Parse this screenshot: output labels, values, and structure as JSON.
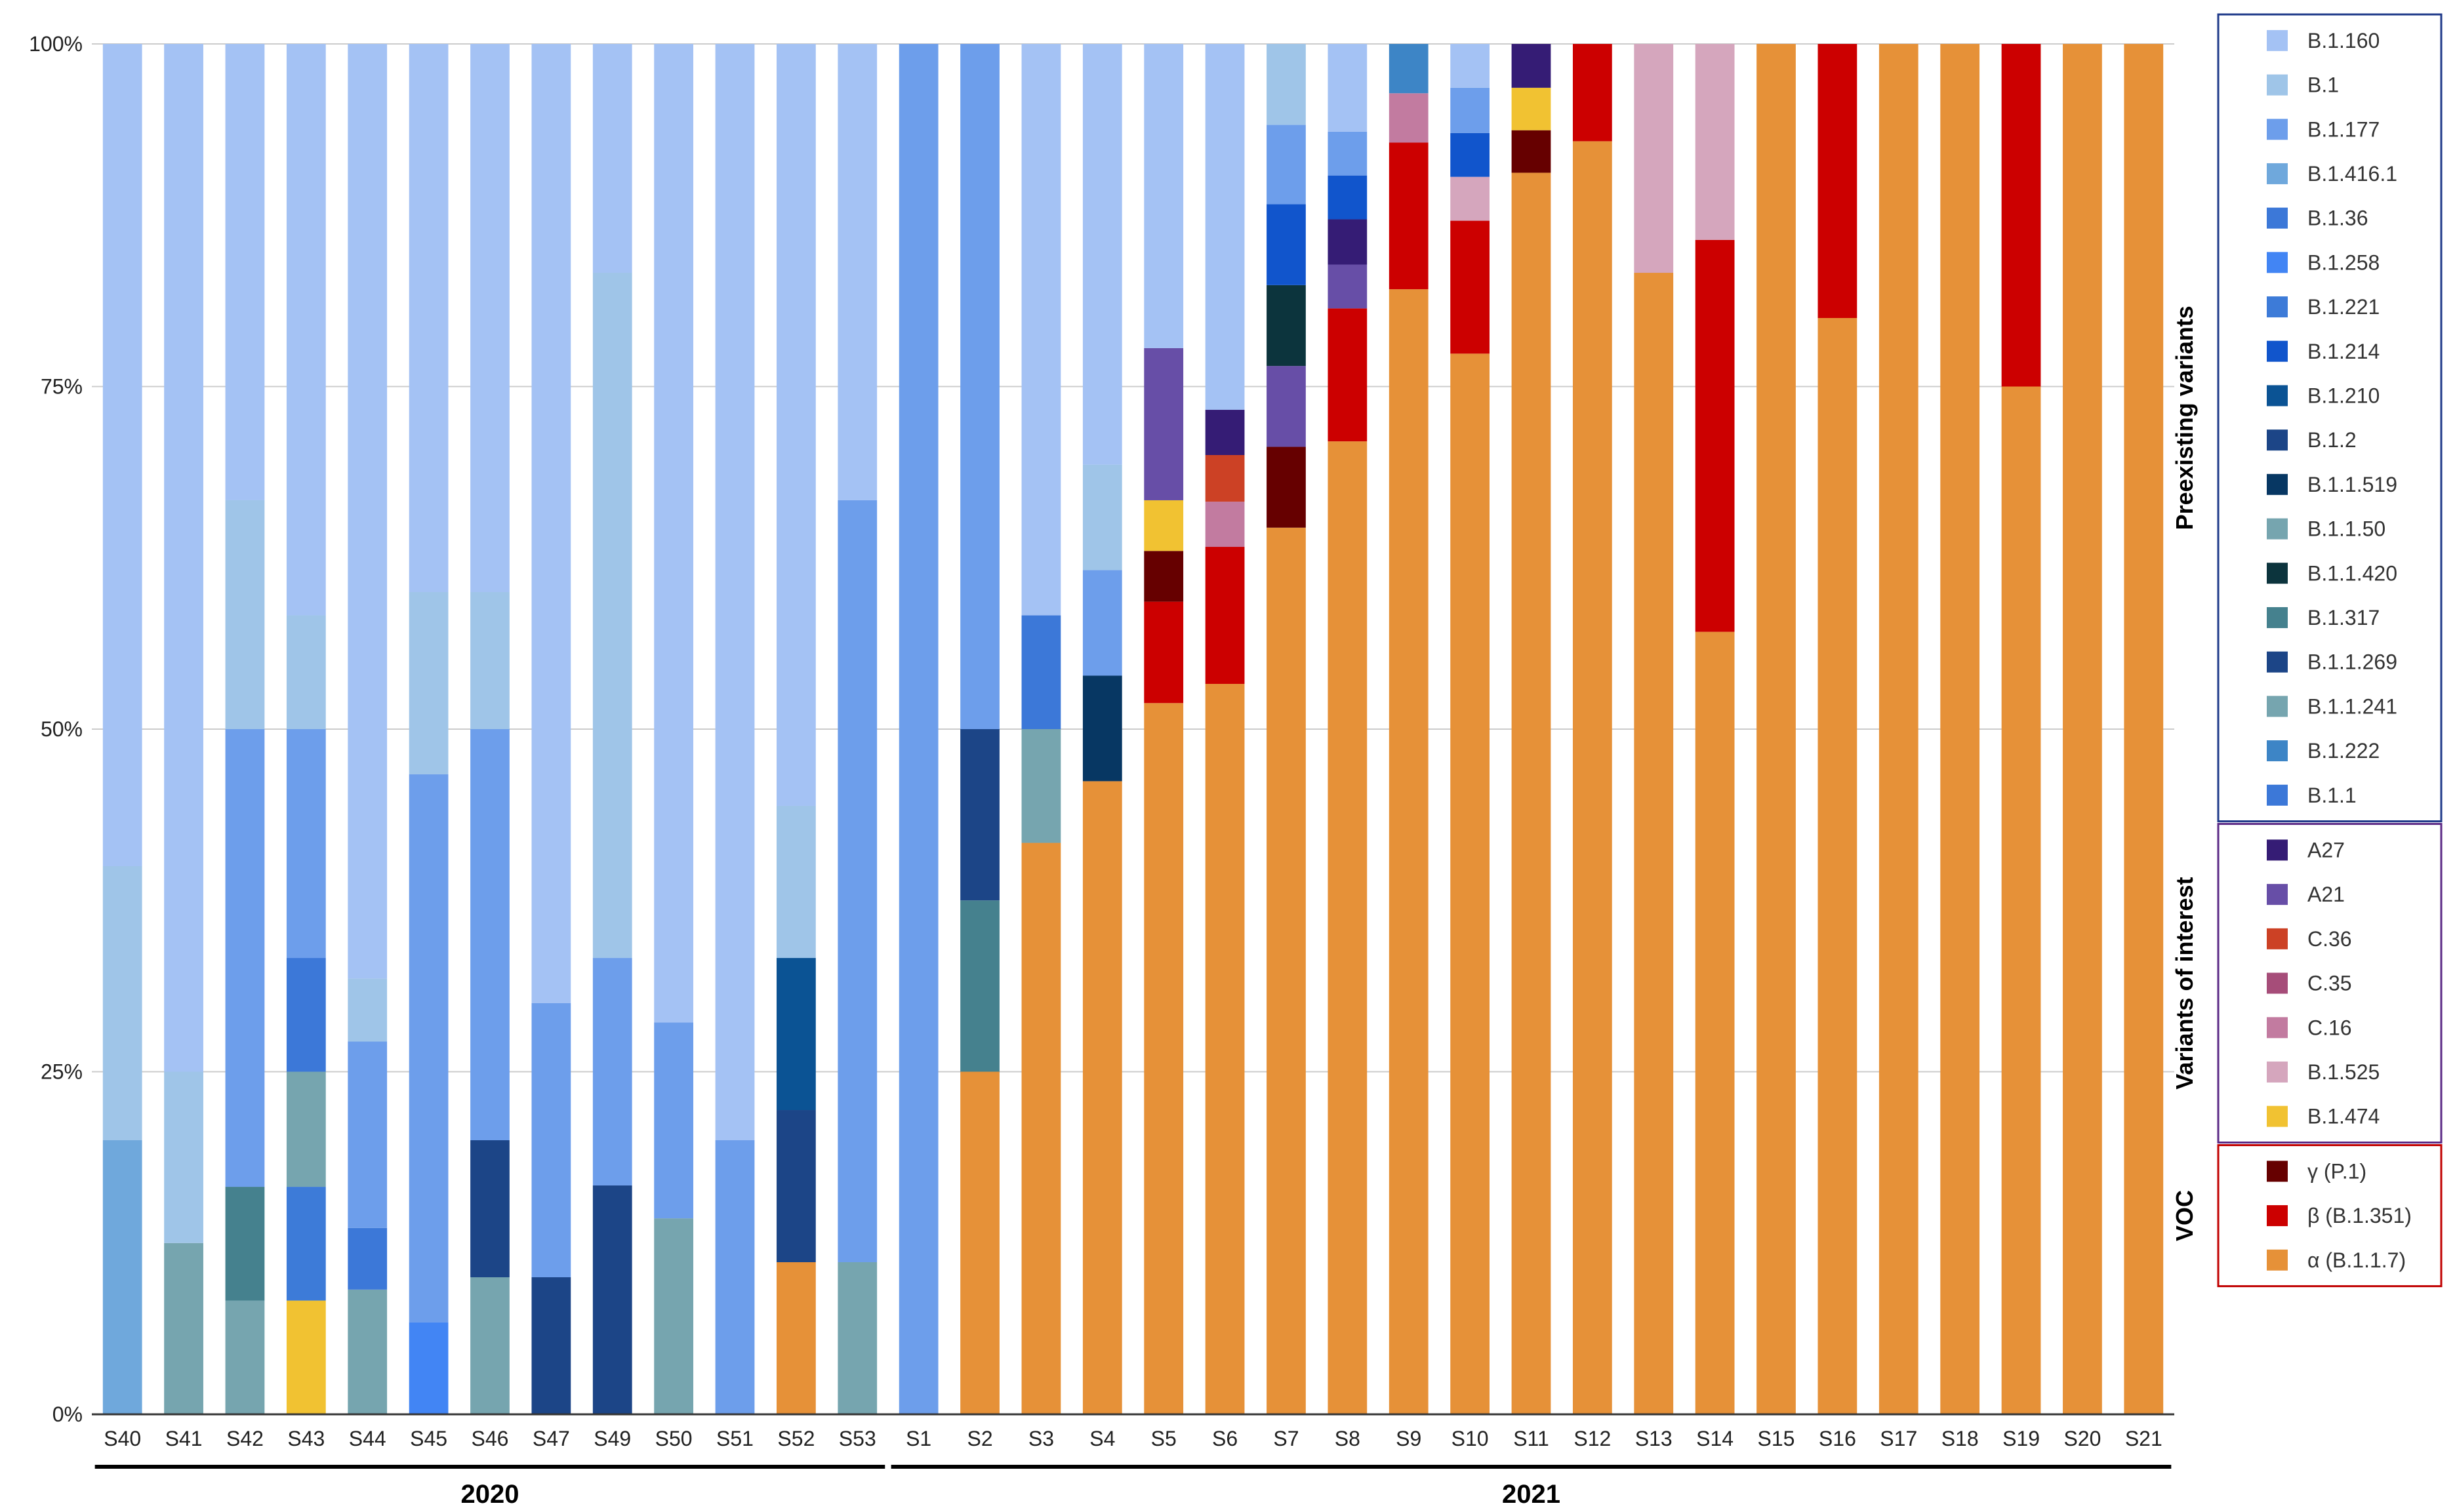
{
  "chart_data": {
    "type": "bar",
    "stacked": true,
    "normalized": true,
    "title": "",
    "xlabel": "",
    "ylabel": "",
    "ylim": [
      0,
      100
    ],
    "y_ticks": [
      "0%",
      "25%",
      "50%",
      "75%",
      "100%"
    ],
    "y_tick_values": [
      0,
      25,
      50,
      75,
      100
    ],
    "grid": "horizontal",
    "legend_position": "right",
    "categories": [
      "S40",
      "S41",
      "S42",
      "S43",
      "S44",
      "S45",
      "S46",
      "S47",
      "S49",
      "S50",
      "S51",
      "S52",
      "S53",
      "S1",
      "S2",
      "S3",
      "S4",
      "S5",
      "S6",
      "S7",
      "S8",
      "S9",
      "S10",
      "S11",
      "S12",
      "S13",
      "S14",
      "S15",
      "S16",
      "S17",
      "S18",
      "S19",
      "S20",
      "S21"
    ],
    "year_groups": [
      {
        "label": "2020",
        "first": 0,
        "last": 12
      },
      {
        "label": "2021",
        "first": 13,
        "last": 33
      }
    ],
    "legend_groups": [
      {
        "label": "Preexisting variants",
        "border": "#1f3a8a",
        "items": [
          "B.1.160",
          "B.1",
          "B.1.177",
          "B.1.416.1",
          "B.1.36",
          "B.1.258",
          "B.1.221",
          "B.1.214",
          "B.1.210",
          "B.1.2",
          "B.1.1.519",
          "B.1.1.50",
          "B.1.1.420",
          "B.1.317",
          "B.1.1.269",
          "B.1.1.241",
          "B.1.222",
          "B.1.1"
        ]
      },
      {
        "label": "Variants of interest",
        "border": "#5b2a86",
        "items": [
          "A27",
          "A21",
          "C.36",
          "C.35",
          "C.16",
          "B.1.525",
          "B.1.474"
        ]
      },
      {
        "label": "VOC",
        "border": "#c00000",
        "items": [
          "γ (P.1)",
          "β (B.1.351)",
          "α (B.1.1.7)"
        ]
      }
    ],
    "colors": {
      "B.1.160": "#a4c2f4",
      "B.1": "#9fc5e8",
      "B.1.177": "#6d9eeb",
      "B.1.416.1": "#6fa8dc",
      "B.1.36": "#3c78d8",
      "B.1.258": "#4285f4",
      "B.1.221": "#3d7bd8",
      "B.1.214": "#1155cc",
      "B.1.210": "#0b5394",
      "B.1.2": "#1c4587",
      "B.1.1.519": "#073763",
      "B.1.1.50": "#76a5af",
      "B.1.1.420": "#0c343d",
      "B.1.317": "#45818e",
      "B.1.1.269": "#1c4587",
      "B.1.1.241": "#76a5af",
      "B.1.222": "#3d85c6",
      "B.1.1": "#3c78d8",
      "A27": "#351c75",
      "A21": "#674ea7",
      "C.36": "#cc4125",
      "C.35": "#a64d79",
      "C.16": "#c27ba0",
      "B.1.525": "#d5a6bd",
      "B.1.474": "#f1c232",
      "γ (P.1)": "#660000",
      "β (B.1.351)": "#cc0000",
      "α (B.1.1.7)": "#e69138"
    },
    "stacks": [
      [
        [
          "B.1.416.1",
          20
        ],
        [
          "B.1",
          20
        ],
        [
          "B.1.160",
          60
        ]
      ],
      [
        [
          "B.1.1.50",
          12.5
        ],
        [
          "B.1",
          12.5
        ],
        [
          "B.1.160",
          75
        ]
      ],
      [
        [
          "B.1.1.50",
          8.3
        ],
        [
          "B.1.317",
          8.3
        ],
        [
          "B.1.177",
          33.4
        ],
        [
          "B.1",
          16.7
        ],
        [
          "B.1.160",
          33.3
        ]
      ],
      [
        [
          "B.1.474",
          8.3
        ],
        [
          "B.1.221",
          8.3
        ],
        [
          "B.1.1.50",
          8.4
        ],
        [
          "B.1.36",
          8.3
        ],
        [
          "B.1.177",
          16.7
        ],
        [
          "B.1",
          8.3
        ],
        [
          "B.1.160",
          41.7
        ]
      ],
      [
        [
          "B.1.1.50",
          9.1
        ],
        [
          "B.1.36",
          4.5
        ],
        [
          "B.1.177",
          13.6
        ],
        [
          "B.1",
          4.6
        ],
        [
          "B.1.160",
          68.2
        ]
      ],
      [
        [
          "B.1.258",
          6.7
        ],
        [
          "B.1.177",
          40
        ],
        [
          "B.1",
          13.3
        ],
        [
          "B.1.160",
          40
        ]
      ],
      [
        [
          "B.1.1.50",
          10
        ],
        [
          "B.1.2",
          10
        ],
        [
          "B.1.177",
          30
        ],
        [
          "B.1",
          10
        ],
        [
          "B.1.160",
          40
        ]
      ],
      [
        [
          "B.1.2",
          10
        ],
        [
          "B.1.177",
          20
        ],
        [
          "B.1.160",
          70
        ]
      ],
      [
        [
          "B.1.2",
          16.7
        ],
        [
          "B.1.177",
          16.6
        ],
        [
          "B.1",
          50
        ],
        [
          "B.1.160",
          16.7
        ]
      ],
      [
        [
          "B.1.1.50",
          14.3
        ],
        [
          "B.1.177",
          14.3
        ],
        [
          "B.1.160",
          71.4
        ]
      ],
      [
        [
          "B.1.177",
          20
        ],
        [
          "B.1.160",
          80
        ]
      ],
      [
        [
          "α (B.1.1.7)",
          11.1
        ],
        [
          "B.1.1.269",
          11.1
        ],
        [
          "B.1.210",
          11.1
        ],
        [
          "B.1",
          11.1
        ],
        [
          "B.1.160",
          55.6
        ]
      ],
      [
        [
          "B.1.1.50",
          11.1
        ],
        [
          "B.1.177",
          55.6
        ],
        [
          "B.1.160",
          33.3
        ]
      ],
      [
        [
          "B.1.177",
          100
        ]
      ],
      [
        [
          "α (B.1.1.7)",
          25
        ],
        [
          "B.1.317",
          12.5
        ],
        [
          "B.1.2",
          12.5
        ],
        [
          "B.1.177",
          50
        ]
      ],
      [
        [
          "α (B.1.1.7)",
          41.7
        ],
        [
          "B.1.1.50",
          8.3
        ],
        [
          "B.1.36",
          8.3
        ],
        [
          "B.1.160",
          41.7
        ]
      ],
      [
        [
          "α (B.1.1.7)",
          46.2
        ],
        [
          "B.1.1.519",
          7.7
        ],
        [
          "B.1.177",
          7.7
        ],
        [
          "B.1",
          7.7
        ],
        [
          "B.1.160",
          30.7
        ]
      ],
      [
        [
          "α (B.1.1.7)",
          51.9
        ],
        [
          "β (B.1.351)",
          7.4
        ],
        [
          "γ (P.1)",
          3.7
        ],
        [
          "B.1.474",
          3.7
        ],
        [
          "A21",
          11.1
        ],
        [
          "B.1.160",
          22.2
        ]
      ],
      [
        [
          "α (B.1.1.7)",
          53.3
        ],
        [
          "β (B.1.351)",
          10
        ],
        [
          "C.16",
          3.3
        ],
        [
          "C.36",
          3.4
        ],
        [
          "A27",
          3.3
        ],
        [
          "B.1.160",
          26.7
        ]
      ],
      [
        [
          "α (B.1.1.7)",
          64.7
        ],
        [
          "γ (P.1)",
          5.9
        ],
        [
          "A21",
          5.9
        ],
        [
          "B.1.1.420",
          5.9
        ],
        [
          "B.1.214",
          5.9
        ],
        [
          "B.1.177",
          5.8
        ],
        [
          "B.1",
          5.9
        ]
      ],
      [
        [
          "α (B.1.1.7)",
          71
        ],
        [
          "β (B.1.351)",
          9.7
        ],
        [
          "A21",
          3.2
        ],
        [
          "A27",
          3.3
        ],
        [
          "B.1.214",
          3.2
        ],
        [
          "B.1.177",
          3.2
        ],
        [
          "B.1.160",
          6.4
        ]
      ],
      [
        [
          "α (B.1.1.7)",
          82.1
        ],
        [
          "β (B.1.351)",
          10.7
        ],
        [
          "C.16",
          3.6
        ],
        [
          "B.1.222",
          3.6
        ]
      ],
      [
        [
          "α (B.1.1.7)",
          77.4
        ],
        [
          "β (B.1.351)",
          9.7
        ],
        [
          "B.1.525",
          3.2
        ],
        [
          "B.1.214",
          3.2
        ],
        [
          "B.1.177",
          3.3
        ],
        [
          "B.1.160",
          3.2
        ]
      ],
      [
        [
          "α (B.1.1.7)",
          90.6
        ],
        [
          "γ (P.1)",
          3.1
        ],
        [
          "B.1.474",
          3.1
        ],
        [
          "A27",
          3.2
        ]
      ],
      [
        [
          "α (B.1.1.7)",
          92.9
        ],
        [
          "β (B.1.351)",
          7.1
        ]
      ],
      [
        [
          "α (B.1.1.7)",
          83.3
        ],
        [
          "B.1.525",
          16.7
        ]
      ],
      [
        [
          "α (B.1.1.7)",
          57.1
        ],
        [
          "β (B.1.351)",
          28.6
        ],
        [
          "B.1.525",
          14.3
        ]
      ],
      [
        [
          "α (B.1.1.7)",
          100
        ]
      ],
      [
        [
          "α (B.1.1.7)",
          80
        ],
        [
          "β (B.1.351)",
          20
        ]
      ],
      [
        [
          "α (B.1.1.7)",
          100
        ]
      ],
      [
        [
          "α (B.1.1.7)",
          100
        ]
      ],
      [
        [
          "α (B.1.1.7)",
          75
        ],
        [
          "β (B.1.351)",
          25
        ]
      ],
      [
        [
          "α (B.1.1.7)",
          100
        ]
      ],
      [
        [
          "α (B.1.1.7)",
          100
        ]
      ]
    ]
  }
}
